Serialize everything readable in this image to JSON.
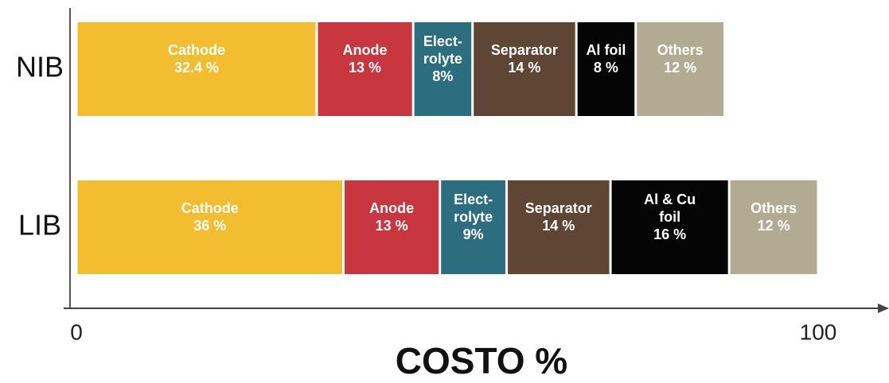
{
  "chart_data": {
    "type": "stacked-bar-horizontal",
    "xlabel": "COSTO %",
    "categories": [
      "NIB",
      "LIB"
    ],
    "series": [
      {
        "color": "#f2bd30",
        "labels": [
          "Cathode",
          "Cathode"
        ],
        "values": [
          32.4,
          36
        ],
        "value_labels": [
          "32.4 %",
          "36 %"
        ]
      },
      {
        "color": "#c8363f",
        "labels": [
          "Anode",
          "Anode"
        ],
        "values": [
          13,
          13
        ],
        "value_labels": [
          "13 %",
          "13 %"
        ]
      },
      {
        "color": "#2c6e80",
        "labels": [
          "Elect-\nrolyte",
          "Elect-\nrolyte"
        ],
        "values": [
          8,
          9
        ],
        "value_labels": [
          "8%",
          "9%"
        ]
      },
      {
        "color": "#5e4534",
        "labels": [
          "Separator",
          "Separator"
        ],
        "values": [
          14,
          14
        ],
        "value_labels": [
          "14 %",
          "14 %"
        ]
      },
      {
        "color": "#050505",
        "labels": [
          "Al foil",
          "Al & Cu\nfoil"
        ],
        "values": [
          8,
          16
        ],
        "value_labels": [
          "8 %",
          "16 %"
        ]
      },
      {
        "color": "#b3ab91",
        "labels": [
          "Others",
          "Others"
        ],
        "values": [
          12,
          12
        ],
        "value_labels": [
          "12 %",
          "12 %"
        ]
      }
    ],
    "xlim": [
      0,
      100
    ],
    "xticks": [
      0,
      100
    ],
    "grid": false
  }
}
